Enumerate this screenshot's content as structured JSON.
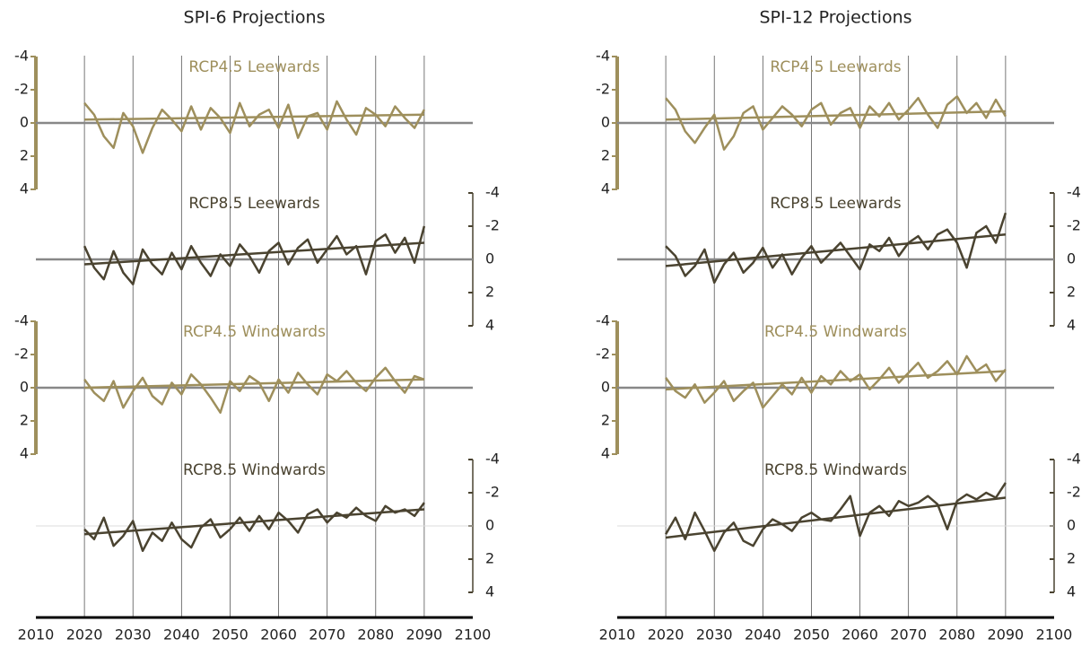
{
  "chart_data": [
    {
      "type": "line",
      "title": "SPI-6 Projections",
      "x": [
        2020,
        2022,
        2024,
        2026,
        2028,
        2030,
        2032,
        2034,
        2036,
        2038,
        2040,
        2042,
        2044,
        2046,
        2048,
        2050,
        2052,
        2054,
        2056,
        2058,
        2060,
        2062,
        2064,
        2066,
        2068,
        2070,
        2072,
        2074,
        2076,
        2078,
        2080,
        2082,
        2084,
        2086,
        2088,
        2090
      ],
      "xlim": [
        2010,
        2100
      ],
      "xticks": [
        2010,
        2020,
        2030,
        2040,
        2050,
        2060,
        2070,
        2080,
        2090,
        2100
      ],
      "panels": [
        {
          "label": "RCP4.5 Leewards",
          "color": "#9e8f5c",
          "axis": "left",
          "ylim": [
            4,
            -4
          ],
          "yticks": [
            -4,
            -2,
            0,
            2,
            4
          ],
          "values": [
            -1.2,
            -0.5,
            0.8,
            1.5,
            -0.6,
            0.2,
            1.8,
            0.3,
            -0.8,
            -0.2,
            0.5,
            -1.0,
            0.4,
            -0.9,
            -0.3,
            0.6,
            -1.2,
            0.2,
            -0.5,
            -0.8,
            0.3,
            -1.1,
            0.9,
            -0.4,
            -0.6,
            0.4,
            -1.3,
            -0.2,
            0.7,
            -0.9,
            -0.5,
            0.2,
            -1.0,
            -0.3,
            0.3,
            -0.8
          ],
          "trend_x": [
            2020,
            2090
          ],
          "trend": [
            -0.2,
            -0.5
          ]
        },
        {
          "label": "RCP8.5 Leewards",
          "color": "#4a4330",
          "axis": "right",
          "ylim": [
            4,
            -4
          ],
          "yticks": [
            -4,
            -2,
            0,
            2,
            4
          ],
          "values": [
            -0.8,
            0.5,
            1.2,
            -0.5,
            0.8,
            1.5,
            -0.6,
            0.3,
            0.9,
            -0.4,
            0.6,
            -0.8,
            0.2,
            1.0,
            -0.3,
            0.4,
            -0.9,
            -0.2,
            0.8,
            -0.5,
            -1.0,
            0.3,
            -0.7,
            -1.2,
            0.2,
            -0.6,
            -1.4,
            -0.3,
            -0.8,
            0.9,
            -1.1,
            -1.5,
            -0.4,
            -1.3,
            0.2,
            -2.0
          ],
          "trend_x": [
            2020,
            2090
          ],
          "trend": [
            0.3,
            -1.0
          ]
        },
        {
          "label": "RCP4.5 Windwards",
          "color": "#9e8f5c",
          "axis": "left",
          "ylim": [
            4,
            -4
          ],
          "yticks": [
            -4,
            -2,
            0,
            2,
            4
          ],
          "values": [
            -0.5,
            0.3,
            0.8,
            -0.4,
            1.2,
            0.2,
            -0.6,
            0.5,
            1.0,
            -0.3,
            0.4,
            -0.8,
            -0.2,
            0.6,
            1.5,
            -0.4,
            0.2,
            -0.7,
            -0.3,
            0.8,
            -0.5,
            0.3,
            -0.9,
            -0.2,
            0.4,
            -0.8,
            -0.4,
            -1.0,
            -0.3,
            0.2,
            -0.6,
            -1.2,
            -0.4,
            0.3,
            -0.7,
            -0.5
          ],
          "trend_x": [
            2020,
            2090
          ],
          "trend": [
            0.0,
            -0.5
          ]
        },
        {
          "label": "RCP8.5 Windwards",
          "color": "#4a4330",
          "axis": "right",
          "ylim": [
            4,
            -4
          ],
          "yticks": [
            -4,
            -2,
            0,
            2,
            4
          ],
          "values": [
            0.2,
            0.8,
            -0.5,
            1.2,
            0.6,
            -0.3,
            1.5,
            0.4,
            0.9,
            -0.2,
            0.8,
            1.3,
            0.1,
            -0.4,
            0.7,
            0.2,
            -0.5,
            0.3,
            -0.6,
            0.2,
            -0.8,
            -0.3,
            0.4,
            -0.7,
            -1.0,
            -0.2,
            -0.8,
            -0.5,
            -1.1,
            -0.6,
            -0.3,
            -1.2,
            -0.8,
            -1.0,
            -0.6,
            -1.4
          ],
          "trend_x": [
            2020,
            2090
          ],
          "trend": [
            0.5,
            -1.0
          ]
        }
      ]
    },
    {
      "type": "line",
      "title": "SPI-12 Projections",
      "x": [
        2020,
        2022,
        2024,
        2026,
        2028,
        2030,
        2032,
        2034,
        2036,
        2038,
        2040,
        2042,
        2044,
        2046,
        2048,
        2050,
        2052,
        2054,
        2056,
        2058,
        2060,
        2062,
        2064,
        2066,
        2068,
        2070,
        2072,
        2074,
        2076,
        2078,
        2080,
        2082,
        2084,
        2086,
        2088,
        2090
      ],
      "xlim": [
        2010,
        2100
      ],
      "xticks": [
        2010,
        2020,
        2030,
        2040,
        2050,
        2060,
        2070,
        2080,
        2090,
        2100
      ],
      "panels": [
        {
          "label": "RCP4.5 Leewards",
          "color": "#9e8f5c",
          "axis": "left",
          "ylim": [
            4,
            -4
          ],
          "yticks": [
            -4,
            -2,
            0,
            2,
            4
          ],
          "values": [
            -1.5,
            -0.8,
            0.5,
            1.2,
            0.3,
            -0.5,
            1.6,
            0.8,
            -0.6,
            -1.0,
            0.4,
            -0.3,
            -1.0,
            -0.5,
            0.2,
            -0.8,
            -1.2,
            0.1,
            -0.6,
            -0.9,
            0.3,
            -1.0,
            -0.4,
            -1.2,
            -0.2,
            -0.8,
            -1.5,
            -0.5,
            0.3,
            -1.1,
            -1.6,
            -0.6,
            -1.2,
            -0.3,
            -1.4,
            -0.4
          ],
          "trend_x": [
            2020,
            2090
          ],
          "trend": [
            -0.2,
            -0.7
          ]
        },
        {
          "label": "RCP8.5 Leewards",
          "color": "#4a4330",
          "axis": "right",
          "ylim": [
            4,
            -4
          ],
          "yticks": [
            -4,
            -2,
            0,
            2,
            4
          ],
          "values": [
            -0.8,
            -0.2,
            1.0,
            0.4,
            -0.6,
            1.4,
            0.3,
            -0.4,
            0.8,
            0.2,
            -0.7,
            0.5,
            -0.3,
            0.9,
            -0.1,
            -0.8,
            0.2,
            -0.4,
            -1.0,
            -0.2,
            0.6,
            -0.9,
            -0.5,
            -1.3,
            -0.2,
            -1.0,
            -1.4,
            -0.6,
            -1.5,
            -1.8,
            -1.0,
            0.5,
            -1.6,
            -2.0,
            -1.0,
            -2.8
          ],
          "trend_x": [
            2020,
            2090
          ],
          "trend": [
            0.4,
            -1.5
          ]
        },
        {
          "label": "RCP4.5 Windwards",
          "color": "#9e8f5c",
          "axis": "left",
          "ylim": [
            4,
            -4
          ],
          "yticks": [
            -4,
            -2,
            0,
            2,
            4
          ],
          "values": [
            -0.6,
            0.2,
            0.6,
            -0.2,
            0.9,
            0.3,
            -0.4,
            0.8,
            0.2,
            -0.3,
            1.2,
            0.5,
            -0.2,
            0.4,
            -0.6,
            0.3,
            -0.7,
            -0.2,
            -1.0,
            -0.4,
            -0.8,
            0.1,
            -0.5,
            -1.2,
            -0.3,
            -0.9,
            -1.5,
            -0.6,
            -1.0,
            -1.6,
            -0.8,
            -1.9,
            -1.0,
            -1.4,
            -0.4,
            -1.1
          ],
          "trend_x": [
            2020,
            2090
          ],
          "trend": [
            0.1,
            -1.0
          ]
        },
        {
          "label": "RCP8.5 Windwards",
          "color": "#4a4330",
          "axis": "right",
          "ylim": [
            4,
            -4
          ],
          "yticks": [
            -4,
            -2,
            0,
            2,
            4
          ],
          "values": [
            0.5,
            -0.5,
            0.8,
            -0.8,
            0.3,
            1.5,
            0.4,
            -0.2,
            0.9,
            1.2,
            0.2,
            -0.4,
            -0.1,
            0.3,
            -0.5,
            -0.8,
            -0.4,
            -0.3,
            -1.0,
            -1.8,
            0.6,
            -0.8,
            -1.2,
            -0.6,
            -1.5,
            -1.2,
            -1.4,
            -1.8,
            -1.3,
            0.2,
            -1.5,
            -1.9,
            -1.6,
            -2.0,
            -1.7,
            -2.6
          ],
          "trend_x": [
            2020,
            2090
          ],
          "trend": [
            0.7,
            -1.7
          ]
        }
      ]
    }
  ]
}
